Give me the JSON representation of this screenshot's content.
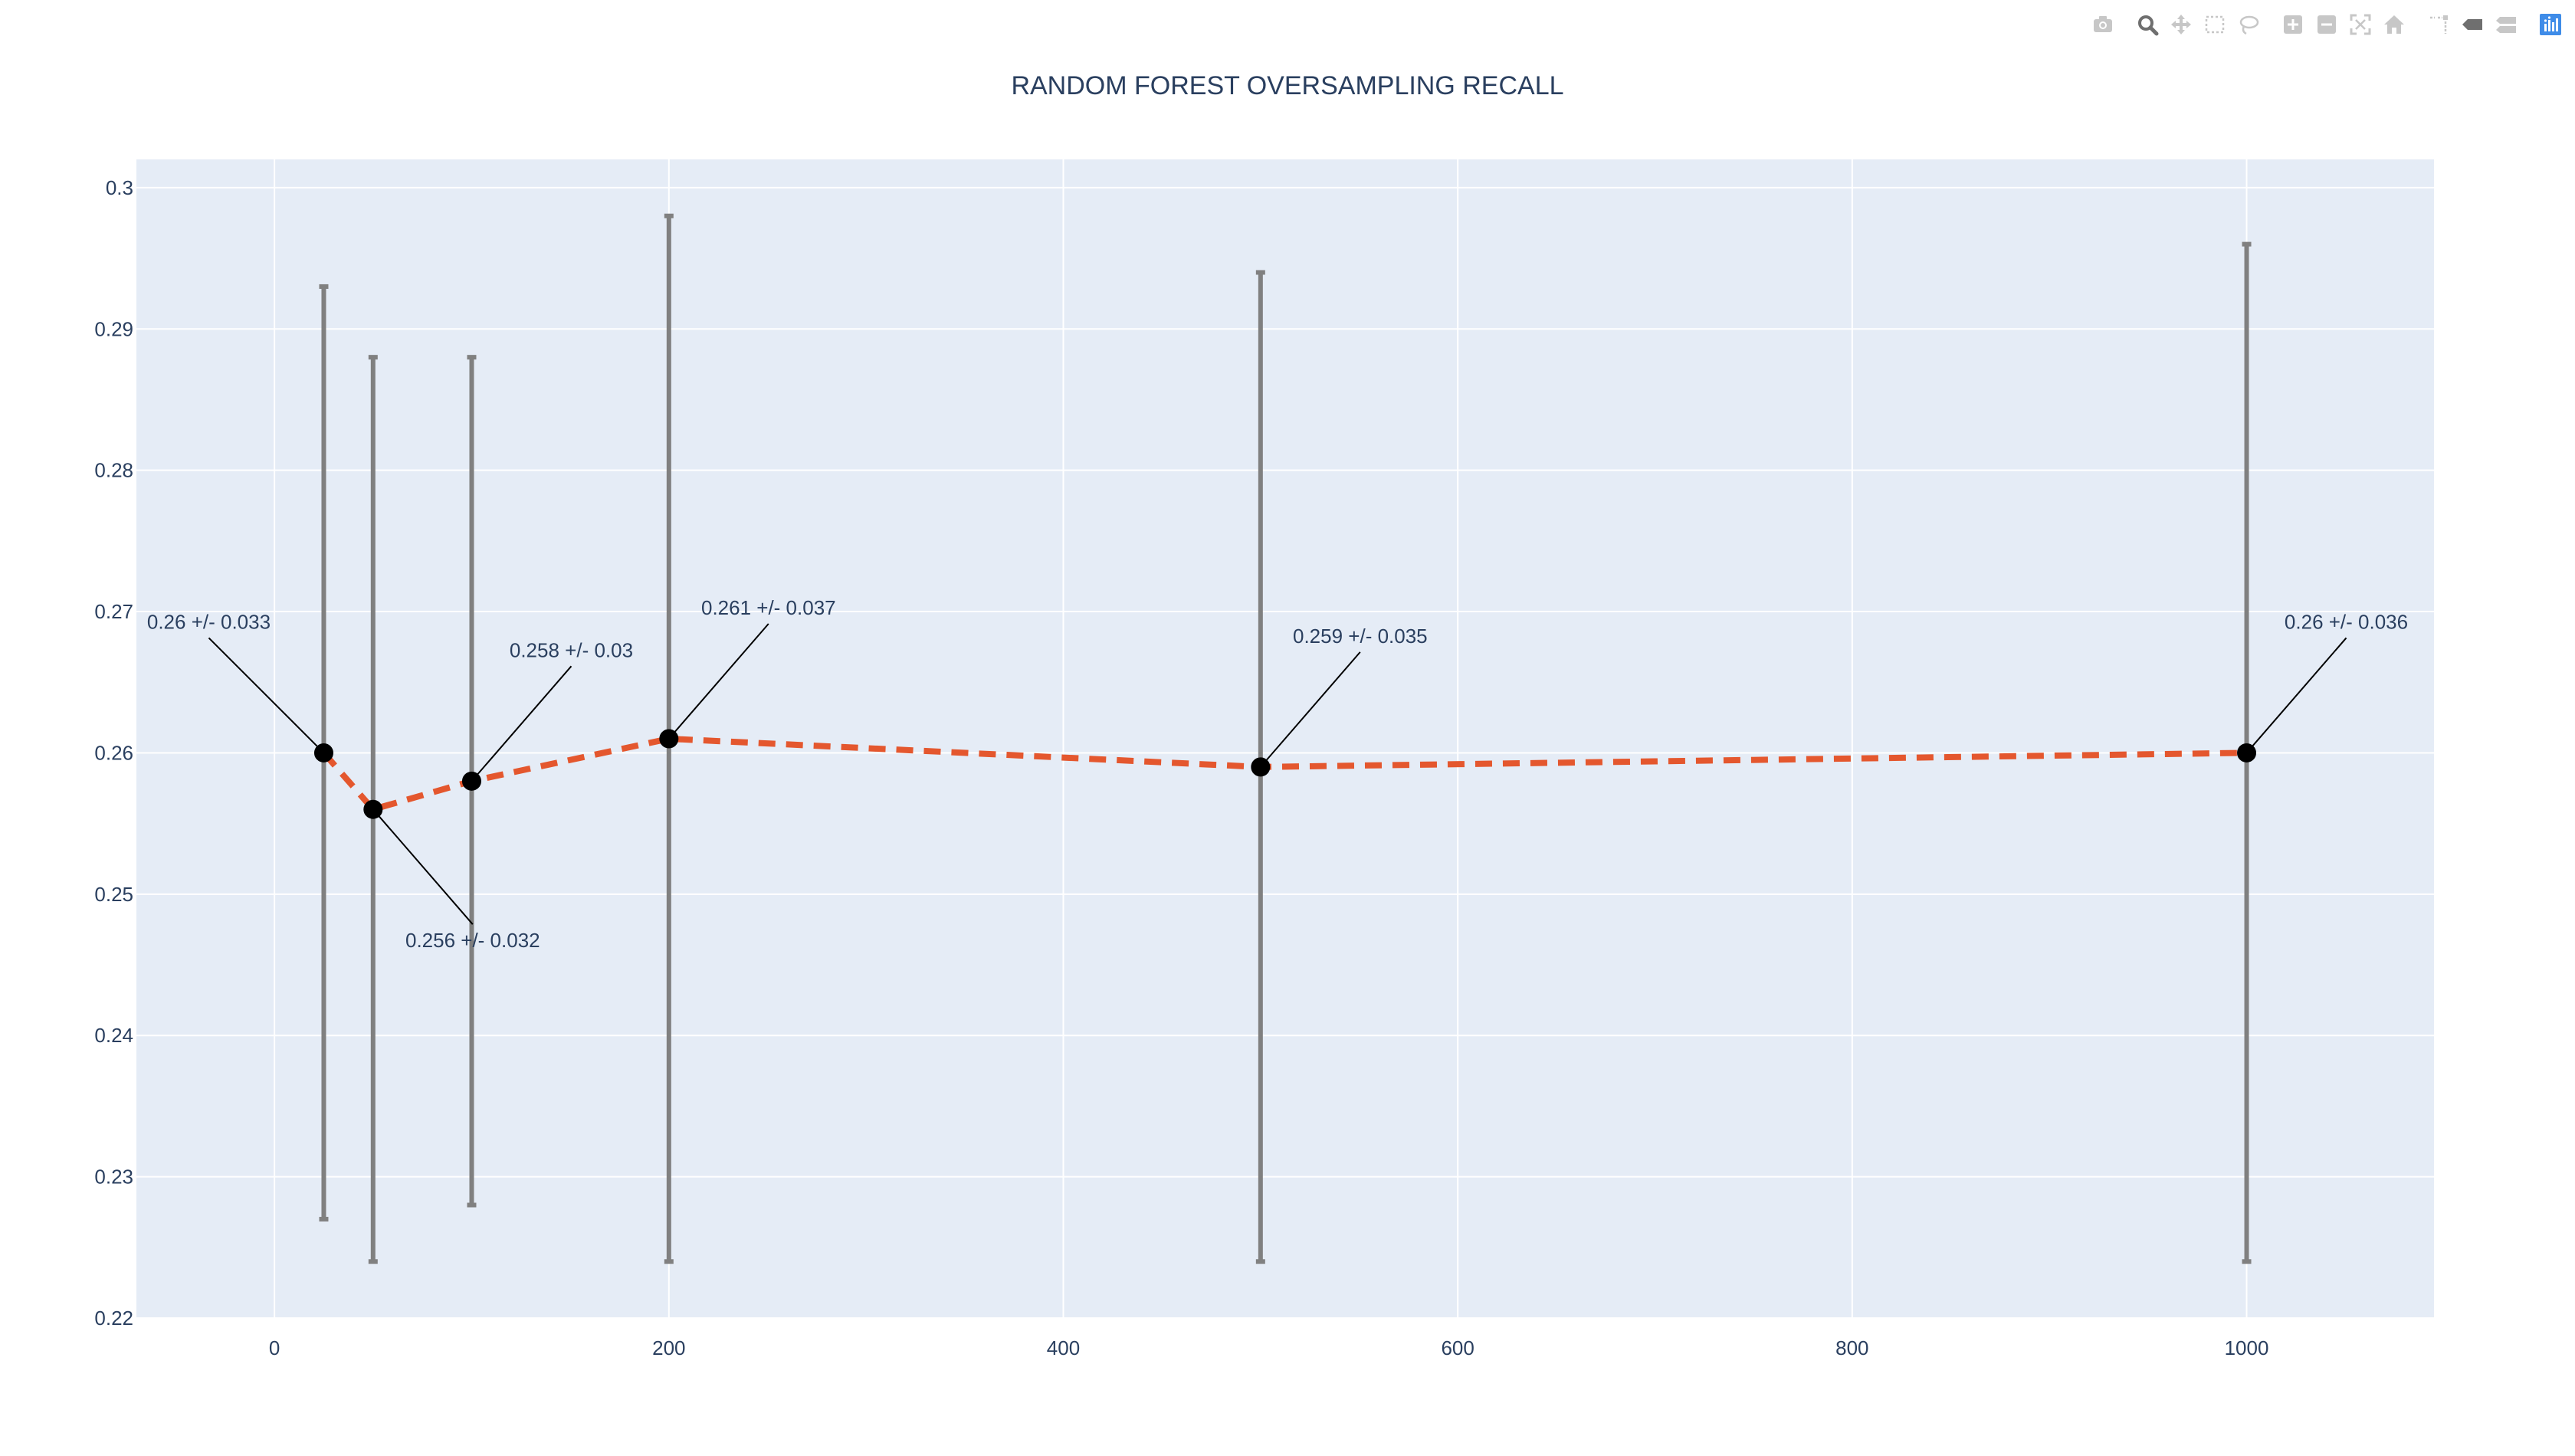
{
  "toolbar": {
    "buttons": [
      {
        "name": "camera-icon",
        "title": "Download plot as a png",
        "active": false,
        "group": 1
      },
      {
        "name": "zoom-icon",
        "title": "Zoom",
        "active": true,
        "group": 2
      },
      {
        "name": "pan-icon",
        "title": "Pan",
        "active": false,
        "group": 2
      },
      {
        "name": "box-select-icon",
        "title": "Box Select",
        "active": false,
        "group": 2
      },
      {
        "name": "lasso-select-icon",
        "title": "Lasso Select",
        "active": false,
        "group": 2
      },
      {
        "name": "zoom-in-icon",
        "title": "Zoom in",
        "active": false,
        "group": 3
      },
      {
        "name": "zoom-out-icon",
        "title": "Zoom out",
        "active": false,
        "group": 3
      },
      {
        "name": "autoscale-icon",
        "title": "Autoscale",
        "active": false,
        "group": 3
      },
      {
        "name": "home-icon",
        "title": "Reset axes",
        "active": false,
        "group": 3
      },
      {
        "name": "spikelines-icon",
        "title": "Toggle Spike Lines",
        "active": false,
        "group": 4
      },
      {
        "name": "hover-closest-icon",
        "title": "Show closest data on hover",
        "active": true,
        "group": 4
      },
      {
        "name": "hover-compare-icon",
        "title": "Compare data on hover",
        "active": false,
        "group": 4
      },
      {
        "name": "plotly-logo-icon",
        "title": "Produced with Plotly",
        "active": false,
        "group": 5
      }
    ],
    "colors": {
      "inactive": "#c7c7c7",
      "active": "#6f6f6f",
      "logo": "#3f8ce8"
    }
  },
  "chart_data": {
    "type": "line",
    "title": "RANDOM FOREST OVERSAMPLING RECALL",
    "xlabel": "",
    "ylabel": "",
    "xlim": [
      -70,
      1095
    ],
    "ylim": [
      0.22,
      0.302
    ],
    "xticks": [
      0,
      200,
      400,
      600,
      800,
      1000
    ],
    "yticks": [
      0.22,
      0.23,
      0.24,
      0.25,
      0.26,
      0.27,
      0.28,
      0.29,
      0.3
    ],
    "grid": true,
    "legend": "none",
    "series": [
      {
        "x": [
          25,
          50,
          100,
          200,
          500,
          1000
        ],
        "y": [
          0.26,
          0.256,
          0.258,
          0.261,
          0.259,
          0.26
        ],
        "error": [
          0.033,
          0.032,
          0.03,
          0.037,
          0.035,
          0.036
        ]
      }
    ],
    "annotations": [
      {
        "text": "0.26 +/- 0.033",
        "placement": "upper-left"
      },
      {
        "text": "0.256 +/- 0.032",
        "placement": "lower-right"
      },
      {
        "text": "0.258 +/- 0.03",
        "placement": "upper-right"
      },
      {
        "text": "0.261 +/- 0.037",
        "placement": "upper-right"
      },
      {
        "text": "0.259 +/- 0.035",
        "placement": "upper-right"
      },
      {
        "text": "0.26 +/- 0.036",
        "placement": "upper-right"
      }
    ],
    "colors": {
      "plot_bg": "#e5ecf6",
      "grid": "#ffffff",
      "line": "#e4572e",
      "marker": "#000000",
      "error_bar": "#808080",
      "text": "#2a3f5f"
    }
  }
}
